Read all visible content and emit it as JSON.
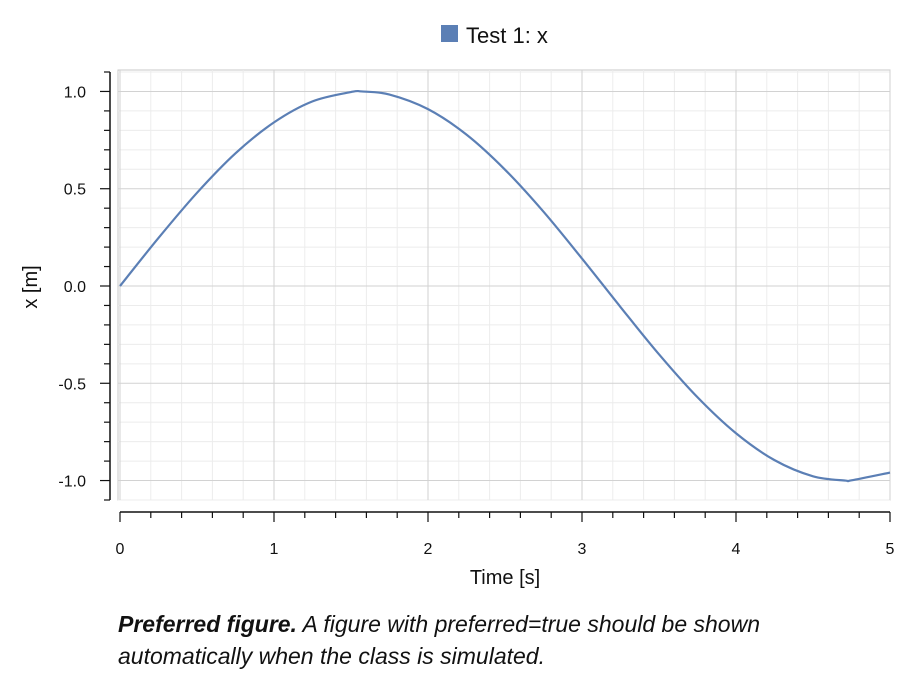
{
  "chart_data": {
    "type": "line",
    "legend": {
      "entries": [
        "Test 1: x"
      ],
      "placement": "top-center"
    },
    "xlabel": "Time [s]",
    "ylabel": "x [m]",
    "xlim": [
      0,
      5
    ],
    "ylim": [
      -1.1,
      1.1
    ],
    "xticks": [
      0,
      1,
      2,
      3,
      4,
      5
    ],
    "xtick_labels": [
      "0",
      "1",
      "2",
      "3",
      "4",
      "5"
    ],
    "yticks": [
      1.0,
      0.5,
      0.0,
      -0.5,
      -1.0
    ],
    "ytick_labels": [
      "1.0",
      "0.5",
      "0.0",
      "-0.5",
      "-1.0"
    ],
    "grid": true,
    "series": [
      {
        "name": "Test 1: x",
        "color": "#5b7fb5",
        "x": [
          0,
          0.25,
          0.5,
          0.75,
          1.0,
          1.25,
          1.5,
          1.57,
          1.75,
          2.0,
          2.25,
          2.5,
          2.75,
          3.0,
          3.25,
          3.5,
          3.75,
          4.0,
          4.25,
          4.5,
          4.71,
          4.75,
          5.0
        ],
        "y": [
          0,
          0.247,
          0.479,
          0.682,
          0.841,
          0.949,
          0.997,
          1.0,
          0.984,
          0.909,
          0.778,
          0.598,
          0.382,
          0.141,
          -0.108,
          -0.351,
          -0.572,
          -0.757,
          -0.895,
          -0.978,
          -1.0,
          -0.999,
          -0.959
        ]
      }
    ]
  },
  "caption": {
    "bold": "Preferred figure.",
    "text": " A figure with preferred=true should be shown automatically when the class is simulated."
  }
}
